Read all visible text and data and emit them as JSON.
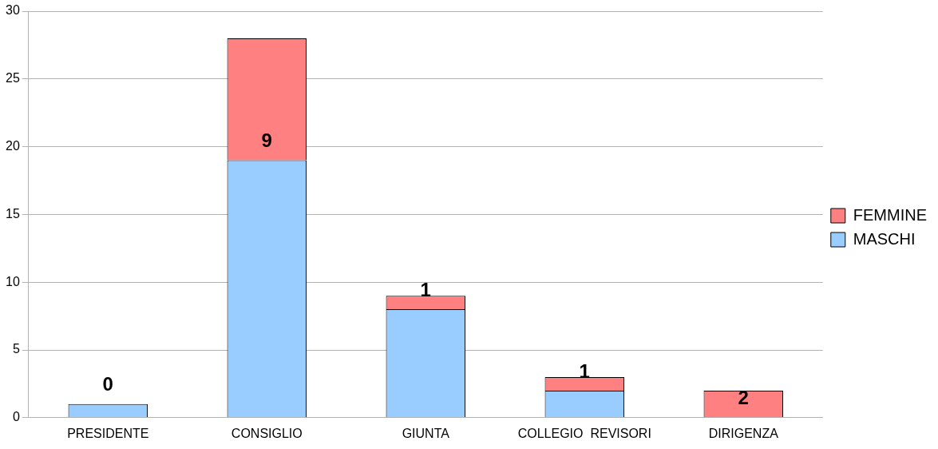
{
  "chart_data": {
    "type": "bar",
    "stacked": true,
    "categories": [
      "PRESIDENTE",
      "CONSIGLIO",
      "GIUNTA",
      "COLLEGIO  REVISORI",
      "DIRIGENZA"
    ],
    "series": [
      {
        "name": "MASCHI",
        "color": "#99ccff",
        "values": [
          1,
          19,
          8,
          2,
          0
        ]
      },
      {
        "name": "FEMMINE",
        "color": "#ff8080",
        "values": [
          0,
          9,
          1,
          1,
          2
        ],
        "value_labels": [
          "0",
          "9",
          "1",
          "1",
          "2"
        ]
      }
    ],
    "ylim": [
      0,
      30
    ],
    "yticks": [
      0,
      5,
      10,
      15,
      20,
      25,
      30
    ],
    "grid": "y",
    "legend": "right"
  }
}
